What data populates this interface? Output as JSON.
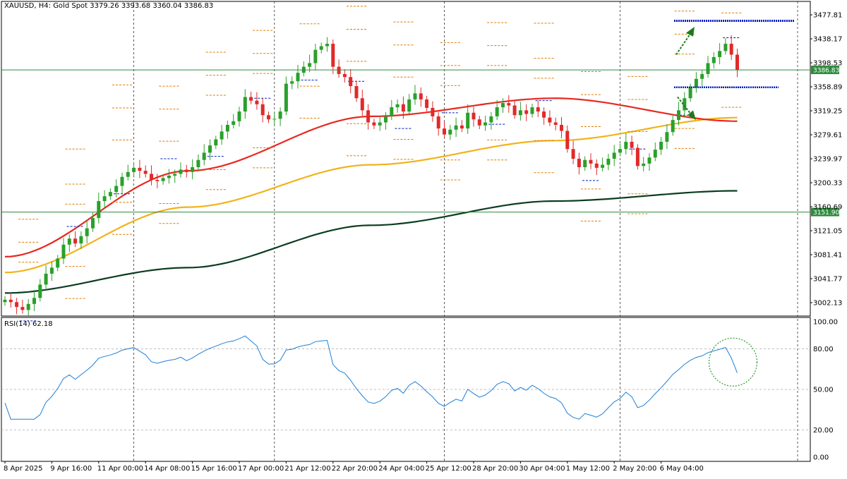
{
  "header": {
    "symbol": "XAUUSD, H4:",
    "name": "Gold Spot",
    "ohlc": "3379.26 3393.68 3360.04 3386.83"
  },
  "rsi": {
    "label": "RSI(14) 62.18"
  },
  "colors": {
    "bull": "#2aa02a",
    "bear": "#e02a2a",
    "ma_fast": "#e8281e",
    "ma_mid": "#f2b21a",
    "ma_slow": "#0b3d22",
    "hline": "#2e8b3e",
    "price_tag": "#2e8b3e",
    "pivot": "#e07b00",
    "pivot_blue": "#0020c0",
    "rsi_line": "#1e7fd6",
    "target_arrow": "#1c7a1c"
  },
  "chart_data": [
    {
      "type": "candlestick",
      "title": "XAUUSD, H4: Gold Spot",
      "ylim": [
        2980,
        3500
      ],
      "y_ticks": [
        "3477.81",
        "3438.17",
        "3398.53",
        "3358.89",
        "3319.25",
        "3279.61",
        "3239.97",
        "3200.33",
        "3160.69",
        "3121.05",
        "3081.41",
        "3041.77",
        "3002.13"
      ],
      "current_price_tag": "3386.83",
      "support_tag": "3151.90",
      "hlines": [
        3386.83,
        3151.9
      ],
      "x_tick_labels": [
        "8 Apr 2025",
        "9 Apr 16:00",
        "11 Apr 00:00",
        "14 Apr 08:00",
        "15 Apr 16:00",
        "17 Apr 00:00",
        "21 Apr 12:00",
        "22 Apr 20:00",
        "24 Apr 04:00",
        "25 Apr 12:00",
        "28 Apr 20:00",
        "30 Apr 04:00",
        "1 May 12:00",
        "2 May 20:00",
        "6 May 04:00"
      ],
      "x_tick_index": [
        0,
        8,
        16,
        24,
        32,
        40,
        48,
        56,
        64,
        72,
        80,
        88,
        96,
        104,
        112
      ],
      "vline_index": [
        22,
        46,
        75,
        105
      ],
      "close": [
        3007,
        3003,
        2995,
        2990,
        3000,
        3010,
        3032,
        3050,
        3060,
        3075,
        3098,
        3108,
        3100,
        3112,
        3125,
        3142,
        3170,
        3178,
        3185,
        3195,
        3210,
        3218,
        3225,
        3220,
        3215,
        3205,
        3203,
        3208,
        3212,
        3215,
        3222,
        3218,
        3226,
        3238,
        3250,
        3262,
        3272,
        3285,
        3296,
        3302,
        3318,
        3342,
        3336,
        3330,
        3312,
        3305,
        3306,
        3318,
        3364,
        3368,
        3382,
        3392,
        3398,
        3420,
        3426,
        3430,
        3392,
        3380,
        3375,
        3360,
        3340,
        3320,
        3300,
        3295,
        3300,
        3310,
        3325,
        3330,
        3318,
        3338,
        3348,
        3338,
        3324,
        3310,
        3290,
        3280,
        3288,
        3295,
        3290,
        3316,
        3305,
        3295,
        3300,
        3310,
        3325,
        3332,
        3328,
        3312,
        3320,
        3314,
        3325,
        3318,
        3308,
        3300,
        3296,
        3286,
        3256,
        3240,
        3226,
        3238,
        3232,
        3225,
        3230,
        3240,
        3250,
        3256,
        3268,
        3258,
        3228,
        3232,
        3242,
        3255,
        3268,
        3284,
        3304,
        3320,
        3340,
        3358,
        3372,
        3380,
        3398,
        3408,
        3418,
        3430,
        3412,
        3386.83
      ],
      "ma_fast": [
        3078,
        3220,
        3310,
        3340,
        3302
      ],
      "ma_mid": [
        3052,
        3160,
        3230,
        3270,
        3308
      ],
      "ma_slow": [
        3018,
        3060,
        3130,
        3170,
        3187
      ],
      "annotations": [
        "dotted resistance target near 3468",
        "dotted support target near 3358",
        "up arrow",
        "down arrow"
      ]
    },
    {
      "type": "line",
      "title": "RSI(14) 62.18",
      "ylim": [
        0,
        100
      ],
      "y_ticks": [
        "100.00",
        "80.00",
        "50.00",
        "20.00",
        "0.00"
      ],
      "levels": [
        80,
        50,
        20
      ],
      "last_value": 62.18,
      "note": "RSI follows close series; final bar highlighted by dotted green circle"
    }
  ]
}
